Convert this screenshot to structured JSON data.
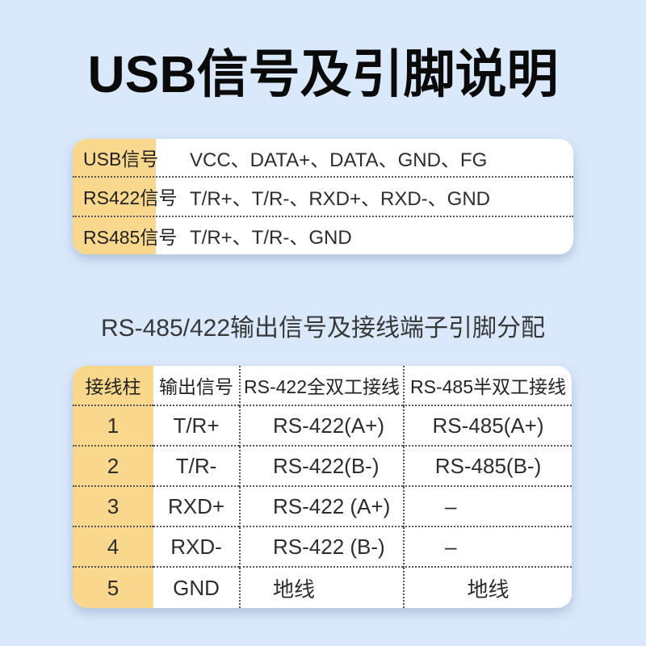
{
  "title": "USB信号及引脚说明",
  "subtitle": "RS-485/422输出信号及接线端子引脚分配",
  "signal_table": {
    "rows": [
      {
        "label": "USB信号",
        "value": "VCC、DATA+、DATA、GND、FG"
      },
      {
        "label": "RS422信号",
        "value": "T/R+、T/R-、RXD+、RXD-、GND"
      },
      {
        "label": "RS485信号",
        "value": "T/R+、T/R-、GND"
      }
    ]
  },
  "pin_table": {
    "headers": [
      "接线柱",
      "输出信号",
      "RS-422全双工接线",
      "RS-485半双工接线"
    ],
    "rows": [
      [
        "1",
        "T/R+",
        "RS-422(A+)",
        "RS-485(A+)"
      ],
      [
        "2",
        "T/R-",
        "RS-422(B-)",
        "RS-485(B-)"
      ],
      [
        "3",
        "RXD+",
        "RS-422 (A+)",
        "–"
      ],
      [
        "4",
        "RXD-",
        "RS-422 (B-)",
        "–"
      ],
      [
        "5",
        "GND",
        "地线",
        "地线"
      ]
    ]
  },
  "colors": {
    "bg": "#d9e8fa",
    "card": "#ffffff",
    "yellow": "#f9d78c",
    "text": "#2d2d2d",
    "title": "#0a0a0a",
    "subtitle": "#383838",
    "dots": "#555555"
  }
}
